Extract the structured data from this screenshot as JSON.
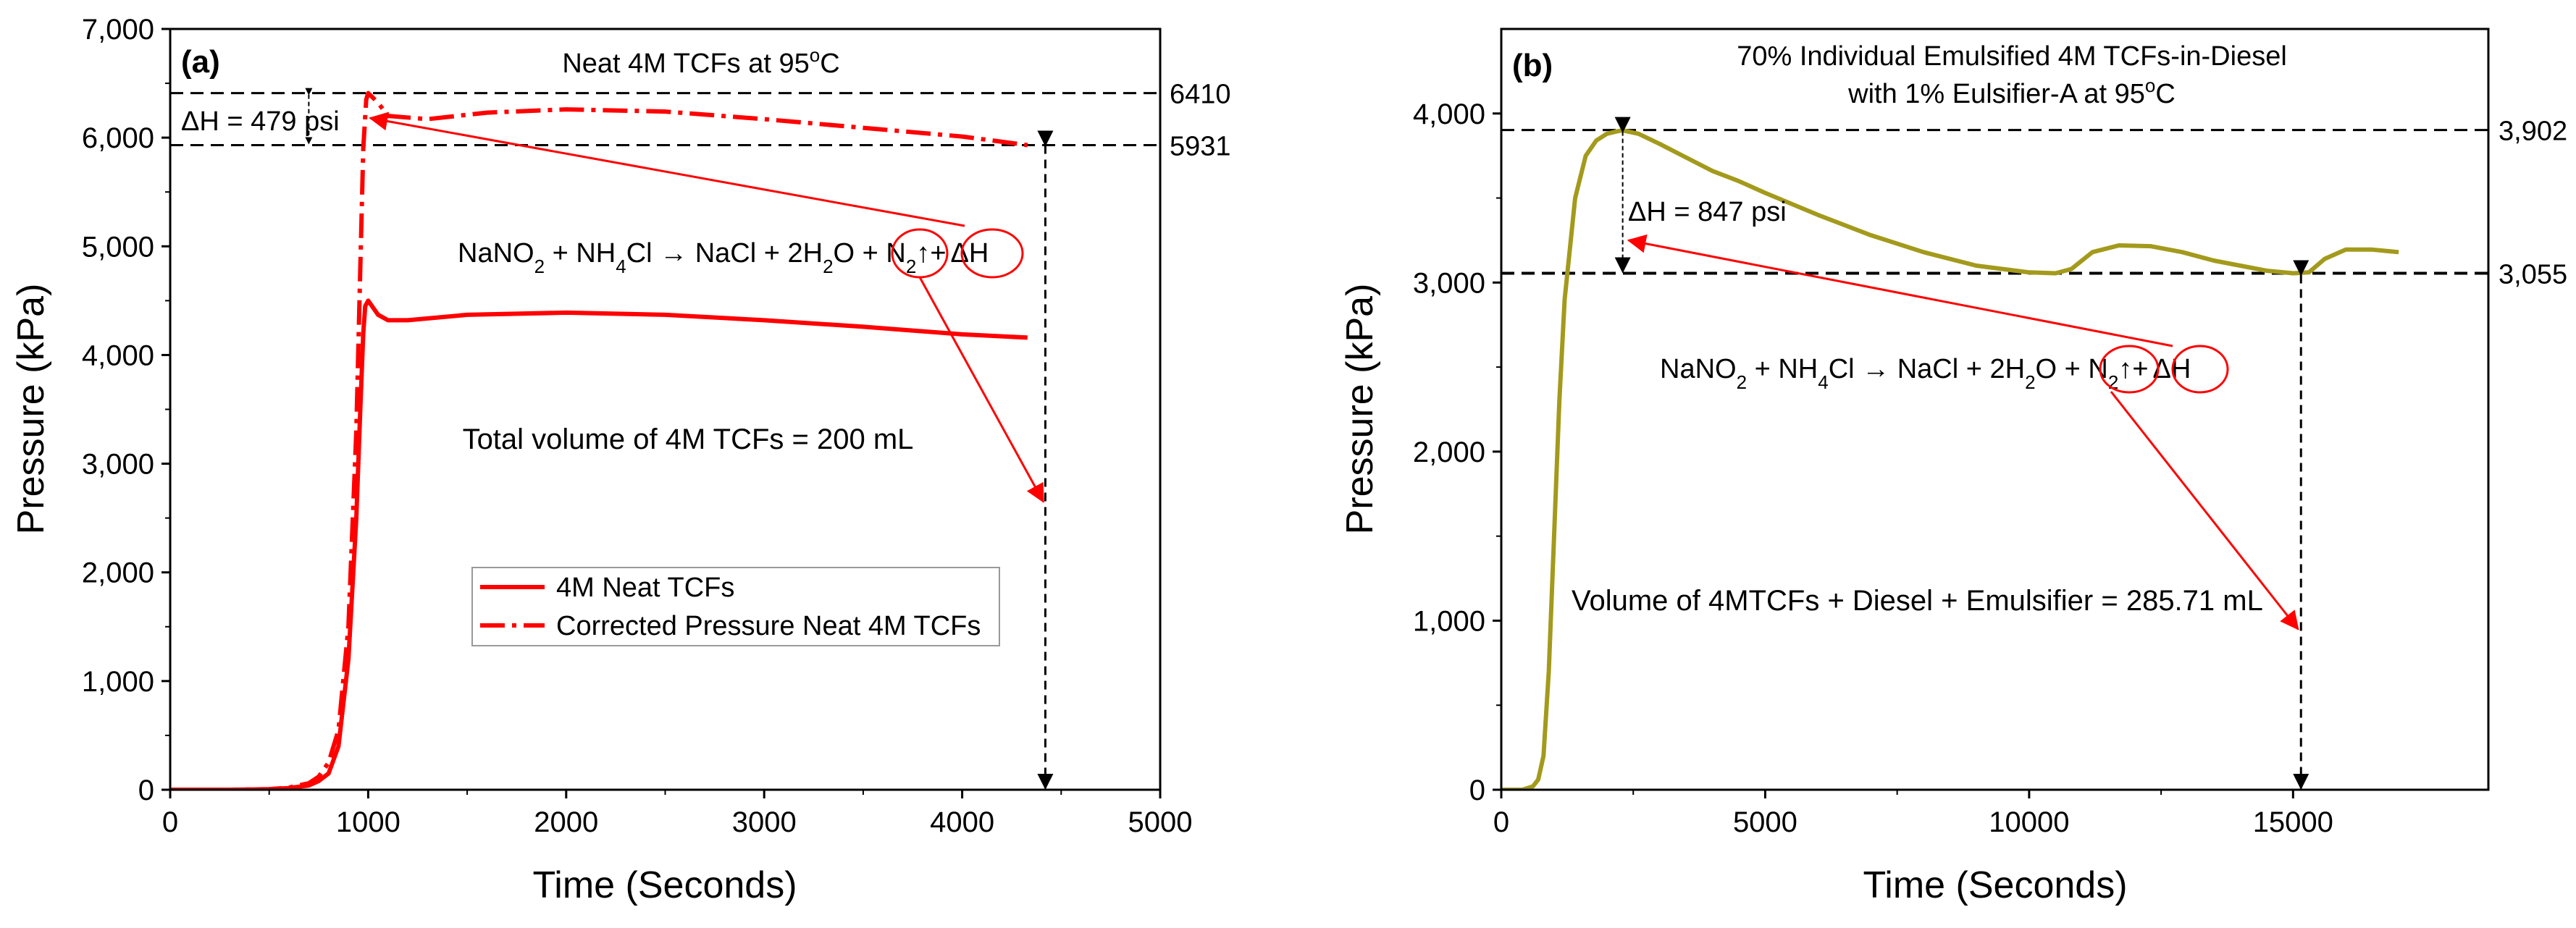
{
  "chart_data": [
    {
      "type": "line",
      "panel_label": "(a)",
      "title": "Neat 4M TCFs at 95°C",
      "title_parts": {
        "pre": "Neat 4M TCFs at 95",
        "sup": "o",
        "post": "C"
      },
      "xlabel": "Time (Seconds)",
      "ylabel": "Pressure (kPa)",
      "xlim": [
        0,
        5000
      ],
      "ylim": [
        0,
        7000
      ],
      "xticks": [
        0,
        1000,
        2000,
        3000,
        4000,
        5000
      ],
      "xtick_labels": [
        "0",
        "1000",
        "2000",
        "3000",
        "4000",
        "5000"
      ],
      "yticks": [
        0,
        1000,
        2000,
        3000,
        4000,
        5000,
        6000,
        7000
      ],
      "ytick_labels": [
        "0",
        "1,000",
        "2,000",
        "3,000",
        "4,000",
        "5,000",
        "6,000",
        "7,000"
      ],
      "reference_lines": [
        {
          "y": 6410,
          "label": "6410"
        },
        {
          "y": 5931,
          "label": "5931"
        }
      ],
      "delta_label": "ΔH = 479 psi",
      "reaction": "NaNO2 + NH4Cl → NaCl + 2H2O + N2↑+ ΔH",
      "reaction_parts": {
        "t1": "NaNO",
        "s1": "2",
        "t2": " + NH",
        "s2": "4",
        "t3": "Cl → NaCl + 2H",
        "s3": "2",
        "t4": "O + ",
        "n2": "N",
        "s4": "2",
        "t5": "↑",
        "t6": "+",
        "dh": "ΔH"
      },
      "volume_note": "Total volume of 4M TCFs = 200 mL",
      "series": [
        {
          "name": "4M Neat TCFs",
          "style": "solid",
          "color": "#ff0000",
          "x": [
            0,
            300,
            500,
            600,
            700,
            750,
            800,
            850,
            900,
            940,
            960,
            975,
            985,
            1000,
            1050,
            1100,
            1200,
            1500,
            2000,
            2500,
            3000,
            3500,
            4000,
            4330
          ],
          "y": [
            0,
            0,
            5,
            15,
            40,
            80,
            150,
            400,
            1200,
            2500,
            3500,
            4200,
            4450,
            4500,
            4370,
            4320,
            4320,
            4370,
            4390,
            4370,
            4320,
            4260,
            4190,
            4160
          ]
        },
        {
          "name": "Corrected Pressure Neat 4M TCFs",
          "style": "dashdot",
          "color": "#ff0000",
          "x": [
            0,
            300,
            500,
            600,
            700,
            750,
            800,
            850,
            900,
            940,
            960,
            975,
            990,
            1000,
            1050,
            1100,
            1300,
            1600,
            2000,
            2500,
            3000,
            3500,
            4000,
            4330
          ],
          "y": [
            0,
            0,
            5,
            20,
            60,
            120,
            250,
            550,
            1500,
            3300,
            4800,
            5900,
            6350,
            6410,
            6320,
            6200,
            6170,
            6230,
            6260,
            6240,
            6170,
            6090,
            6010,
            5931
          ]
        }
      ],
      "legend": [
        "4M Neat TCFs",
        "Corrected Pressure Neat 4M TCFs"
      ]
    },
    {
      "type": "line",
      "panel_label": "(b)",
      "title_line1": "70% Individual Emulsified 4M TCFs-in-Diesel",
      "title_line2": "with 1% Eulsifier-A at 95°C",
      "title_line2_parts": {
        "pre": "with 1% Eulsifier-A at 95",
        "sup": "o",
        "post": "C"
      },
      "xlabel": "Time (Seconds)",
      "ylabel": "Pressure (kPa)",
      "xlim": [
        0,
        18700
      ],
      "ylim": [
        0,
        4500
      ],
      "xticks": [
        0,
        5000,
        10000,
        15000
      ],
      "xtick_labels": [
        "0",
        "5000",
        "10000",
        "15000"
      ],
      "yticks": [
        0,
        1000,
        2000,
        3000,
        4000
      ],
      "ytick_labels": [
        "0",
        "1,000",
        "2,000",
        "3,000",
        "4,000"
      ],
      "reference_lines": [
        {
          "y": 3902,
          "label": "3,902"
        },
        {
          "y": 3055,
          "label": "3,055"
        }
      ],
      "delta_label": "ΔH = 847 psi",
      "reaction": "NaNO2 + NH4Cl → NaCl + 2H2O + N2↑+ ΔH",
      "reaction_parts": {
        "t1": "NaNO",
        "s1": "2",
        "t2": " + NH",
        "s2": "4",
        "t3": "Cl → NaCl + 2H",
        "s3": "2",
        "t4": "O + ",
        "n2": "N",
        "s4": "2",
        "t5": "↑",
        "t6": "+",
        "dh": "ΔH"
      },
      "volume_note": "Volume of 4MTCFs + Diesel + Emulsifier = 285.71 mL",
      "series": [
        {
          "name": "Emulsified 4M TCFs-in-Diesel",
          "style": "solid",
          "color": "#a39a1c",
          "x": [
            0,
            400,
            600,
            700,
            800,
            900,
            1000,
            1100,
            1200,
            1400,
            1600,
            1800,
            2000,
            2200,
            2300,
            2600,
            3000,
            3500,
            4000,
            4500,
            5000,
            6000,
            7000,
            8000,
            9000,
            10000,
            10500,
            10800,
            11200,
            11700,
            12300,
            12900,
            13500,
            14000,
            14500,
            15000,
            15300,
            15600,
            16000,
            16500,
            17000
          ],
          "y": [
            0,
            0,
            20,
            60,
            200,
            700,
            1500,
            2300,
            2900,
            3500,
            3750,
            3840,
            3880,
            3895,
            3900,
            3880,
            3820,
            3740,
            3660,
            3600,
            3530,
            3400,
            3280,
            3180,
            3100,
            3060,
            3055,
            3080,
            3180,
            3220,
            3215,
            3180,
            3130,
            3100,
            3070,
            3055,
            3060,
            3140,
            3195,
            3195,
            3180
          ]
        }
      ]
    }
  ]
}
